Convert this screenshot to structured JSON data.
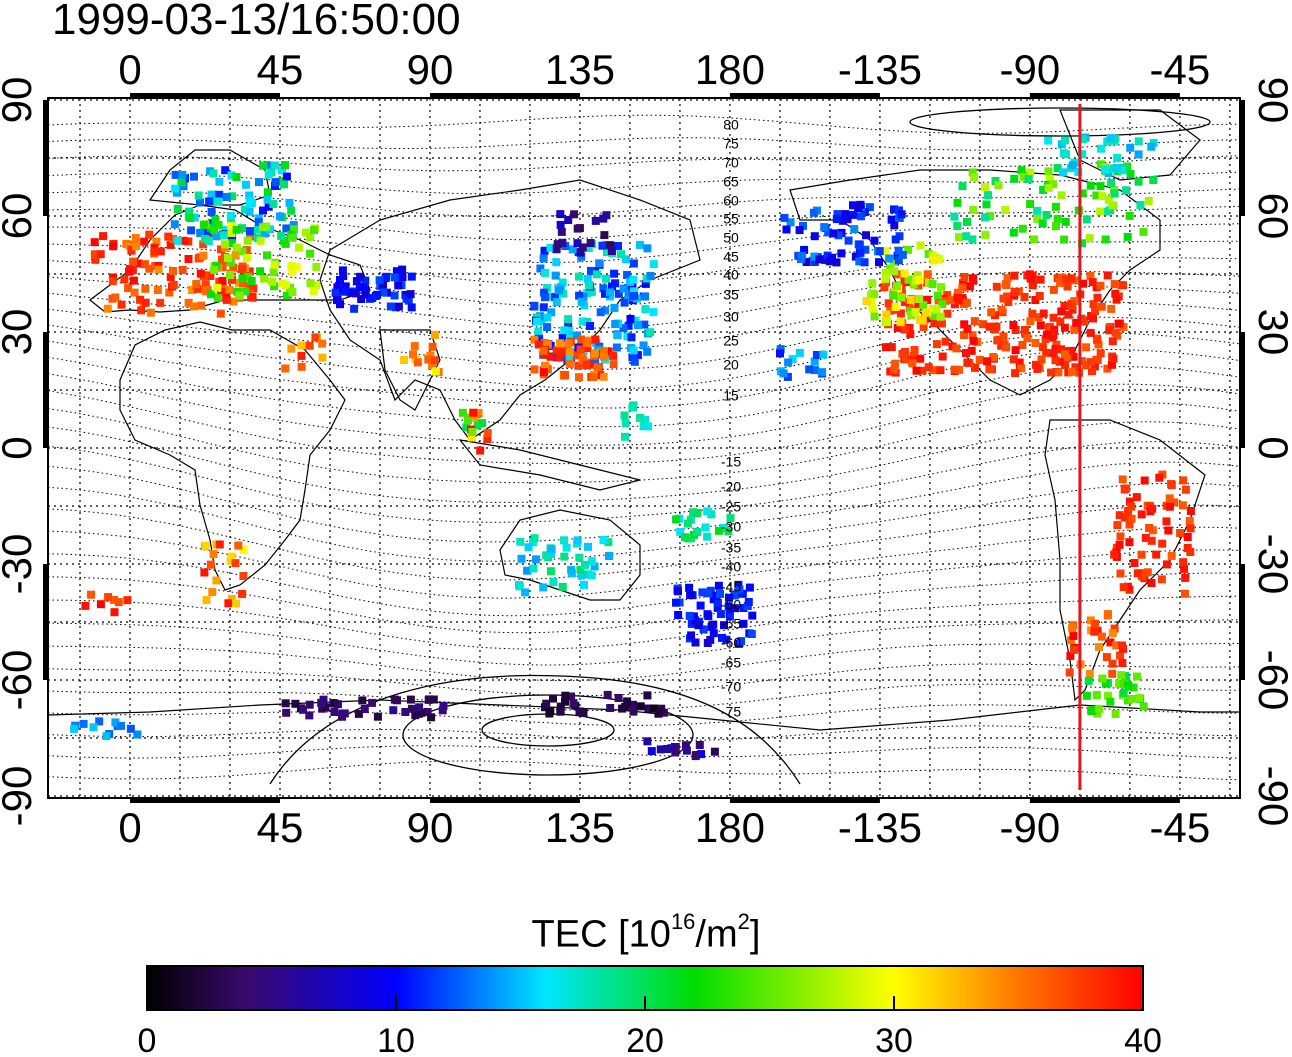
{
  "title": "1999-03-13/16:50:00",
  "map": {
    "top_ticks": [
      "0",
      "45",
      "90",
      "135",
      "180",
      "-135",
      "-90",
      "-45"
    ],
    "bottom_ticks": [
      "0",
      "45",
      "90",
      "135",
      "180",
      "-135",
      "-90",
      "-45"
    ],
    "lat_ticks": [
      "90",
      "60",
      "30",
      "0",
      "-30",
      "-60",
      "-90"
    ],
    "contour_labels": [
      "80",
      "75",
      "70",
      "65",
      "60",
      "55",
      "50",
      "45",
      "40",
      "35",
      "30",
      "25",
      "20",
      "15",
      "-15",
      "-20",
      "-25",
      "-30",
      "-35",
      "-40",
      "-45",
      "-50",
      "-55",
      "-60",
      "-65",
      "-70",
      "-75"
    ],
    "marker_longitude": -75,
    "marker_color": "#e0181c"
  },
  "colorbar": {
    "label_main": "TEC  [10",
    "label_exp1": "16",
    "label_mid": "/m",
    "label_exp2": "2",
    "label_end": "]",
    "ticks": [
      "0",
      "10",
      "20",
      "30",
      "40"
    ],
    "range": [
      0,
      40
    ]
  }
}
